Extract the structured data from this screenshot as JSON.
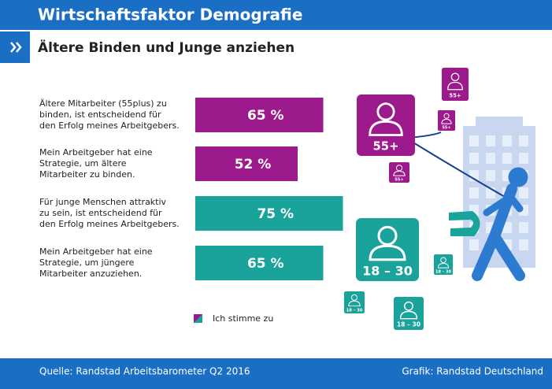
{
  "chart_data": {
    "type": "bar",
    "orientation": "horizontal",
    "title": "Wirtschaftsfaktor Demografie",
    "subtitle": "Ältere Binden und Junge anziehen",
    "categories": [
      "Ältere Mitarbeiter (55plus) zu\nbinden, ist entscheidend für\nden Erfolg meines Arbeitgebers.",
      "Mein Arbeitgeber hat eine\nStrategie, um ältere\nMitarbeiter zu binden.",
      "Für junge Menschen attraktiv\nzu sein, ist entscheidend für\nden Erfolg meines Arbeitgebers.",
      "Mein Arbeitgeber hat eine\nStrategie, um jüngere\nMitarbeiter anzuziehen."
    ],
    "values": [
      65,
      52,
      75,
      65
    ],
    "value_labels": [
      "65 %",
      "52 %",
      "75 %",
      "65 %"
    ],
    "colors": [
      "#9c1a8b",
      "#9c1a8b",
      "#1aa39b",
      "#1aa39b"
    ],
    "xlim": [
      0,
      100
    ],
    "legend": {
      "label": "Ich stimme zu"
    },
    "annotations": [
      "55+",
      "55+",
      "55+",
      "55+",
      "18 – 30",
      "18 – 30",
      "18 – 30",
      "18 – 30"
    ],
    "source": "Quelle: Randstad Arbeitsbarometer Q2 2016",
    "credit": "Grafik: Randstad Deutschland"
  }
}
